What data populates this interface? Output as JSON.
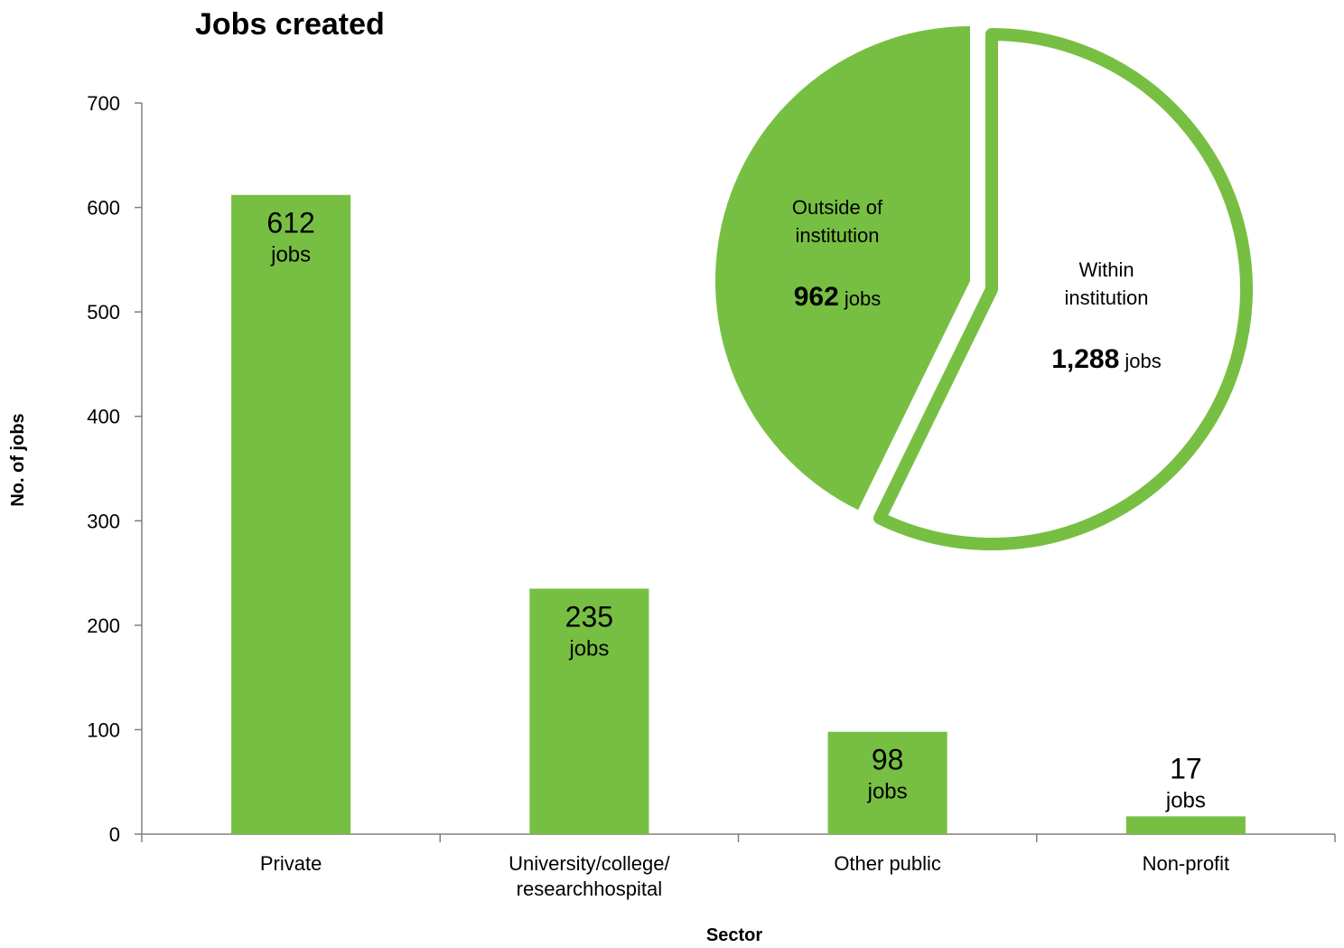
{
  "chart_data": [
    {
      "type": "bar",
      "title": "Jobs created",
      "xlabel": "Sector",
      "ylabel": "No. of jobs",
      "ylim": [
        0,
        700
      ],
      "yticks": [
        0,
        100,
        200,
        300,
        400,
        500,
        600,
        700
      ],
      "categories": [
        [
          "Private"
        ],
        [
          "University/college/",
          "researchhospital"
        ],
        [
          "Other public"
        ],
        [
          "Non-profit"
        ]
      ],
      "values": [
        612,
        235,
        98,
        17
      ],
      "value_unit": "jobs",
      "color": "#77bf43",
      "grid": false
    },
    {
      "type": "pie",
      "slices": [
        {
          "label": [
            "Outside of",
            "institution"
          ],
          "value": 962,
          "value_text": "962",
          "unit": "jobs",
          "style": "filled"
        },
        {
          "label": [
            "Within",
            "institution"
          ],
          "value": 1288,
          "value_text": "1,288",
          "unit": "jobs",
          "style": "outlined"
        }
      ],
      "color": "#77bf43",
      "exploded": true
    }
  ]
}
